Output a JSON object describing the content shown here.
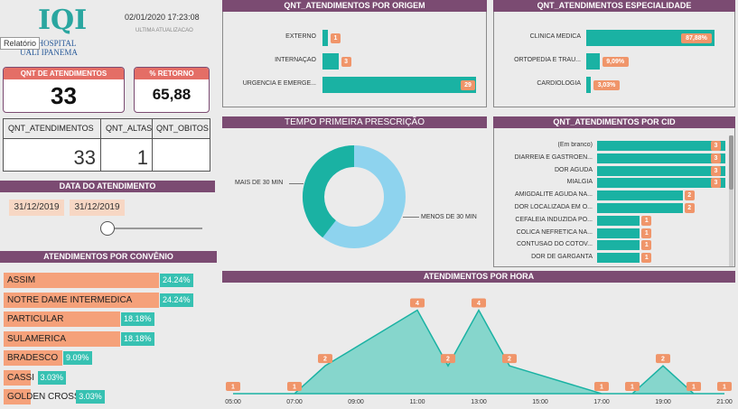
{
  "logo": {
    "line1": "HOSPITAL",
    "line2": "UALI IPANEMA"
  },
  "tooltip": "Relatório",
  "header": {
    "timestamp": "02/01/2020 17:23:08",
    "subtitle": "ULTIMA ATUALIZACAO"
  },
  "kpi": {
    "atend_label": "QNT DE ATENDIMENTOS",
    "atend_value": "33",
    "retorno_label": "% RETORNO",
    "retorno_value": "65,88"
  },
  "table": {
    "headers": [
      "QNT_ATENDIMENTOS",
      "QNT_ALTAS",
      "QNT_OBITOS"
    ],
    "values": [
      "33",
      "1",
      ""
    ]
  },
  "date_filter": {
    "title": "DATA DO ATENDIMENTO",
    "start": "31/12/2019",
    "end": "31/12/2019"
  },
  "convenio": {
    "title": "ATENDIMENTOS POR CONVÊNIO",
    "items": [
      {
        "name": "ASSIM",
        "pct": "24.24%",
        "value": 24.24
      },
      {
        "name": "NOTRE DAME INTERMEDICA",
        "pct": "24.24%",
        "value": 24.24
      },
      {
        "name": "PARTICULAR",
        "pct": "18.18%",
        "value": 18.18
      },
      {
        "name": "SULAMERICA",
        "pct": "18.18%",
        "value": 18.18
      },
      {
        "name": "BRADESCO",
        "pct": "9.09%",
        "value": 9.09
      },
      {
        "name": "CASSI",
        "pct": "3.03%",
        "value": 3.03
      },
      {
        "name": "GOLDEN CROSS",
        "pct": "3.03%",
        "value": 3.03
      }
    ]
  },
  "origem": {
    "title": "QNT_ATENDIMENTOS POR ORIGEM",
    "items": [
      {
        "name": "EXTERNO",
        "value": 1,
        "label": "1"
      },
      {
        "name": "INTERNAÇAO",
        "value": 3,
        "label": "3"
      },
      {
        "name": "URGENCIA E EMERGE...",
        "value": 29,
        "label": "29"
      }
    ]
  },
  "especialidade": {
    "title": "QNT_ATENDIMENTOS ESPECIALIDADE",
    "items": [
      {
        "name": "CLINICA MEDICA",
        "value": 87.88,
        "label": "87,88%"
      },
      {
        "name": "ORTOPEDIA E TRAU...",
        "value": 9.09,
        "label": "9,09%"
      },
      {
        "name": "CARDIOLOGIA",
        "value": 3.03,
        "label": "3,03%"
      }
    ]
  },
  "prescricao": {
    "title": "TEMPO PRIMEIRA PRESCRIÇÃO",
    "label_mais": "MAIS DE 30 MIN",
    "label_menos": "MENOS DE 30 MIN"
  },
  "cid": {
    "title": "QNT_ATENDIMENTOS POR CID",
    "items": [
      {
        "name": "(Em branco)",
        "value": 3,
        "label": "3"
      },
      {
        "name": "DIARRÉIA E GASTROEN...",
        "value": 3,
        "label": "3"
      },
      {
        "name": "DOR AGUDA",
        "value": 3,
        "label": "3"
      },
      {
        "name": "MIALGIA",
        "value": 3,
        "label": "3"
      },
      {
        "name": "AMIGDALITE AGUDA NÃ...",
        "value": 2,
        "label": "2"
      },
      {
        "name": "DOR LOCALIZADA EM O...",
        "value": 2,
        "label": "2"
      },
      {
        "name": "CEFALÉIA INDUZIDA PO...",
        "value": 1,
        "label": "1"
      },
      {
        "name": "CÓLICA NEFRÉTICA NÃ...",
        "value": 1,
        "label": "1"
      },
      {
        "name": "CONTUSÃO DO COTOV...",
        "value": 1,
        "label": "1"
      },
      {
        "name": "DOR DE GARGANTA",
        "value": 1,
        "label": "1"
      }
    ]
  },
  "chart_data": {
    "type": "area",
    "title": "ATENDIMENTOS POR HORA",
    "x_ticks": [
      "05:00",
      "07:00",
      "09:00",
      "11:00",
      "13:00",
      "15:00",
      "17:00",
      "19:00",
      "21:00"
    ],
    "points": [
      {
        "x": 5,
        "y": 1
      },
      {
        "x": 7,
        "y": 1
      },
      {
        "x": 8,
        "y": 2
      },
      {
        "x": 11,
        "y": 4
      },
      {
        "x": 12,
        "y": 2
      },
      {
        "x": 13,
        "y": 4
      },
      {
        "x": 14,
        "y": 2
      },
      {
        "x": 17,
        "y": 1
      },
      {
        "x": 18,
        "y": 1
      },
      {
        "x": 19,
        "y": 2
      },
      {
        "x": 20,
        "y": 1
      },
      {
        "x": 21,
        "y": 1
      }
    ],
    "xlim": [
      5,
      21
    ],
    "ylim": [
      1,
      4.6
    ]
  },
  "colors": {
    "teal": "#1ab2a3",
    "orange": "#f0956a",
    "purple": "#7b4b72",
    "light_blue": "#8ed3ee"
  }
}
